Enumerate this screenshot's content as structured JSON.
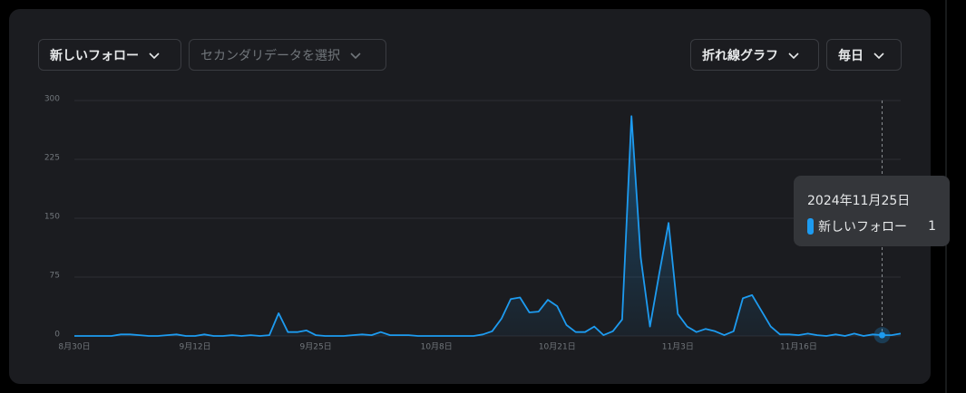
{
  "controls": {
    "primary": "新しいフォロー",
    "secondary": "セカンダリデータを選択",
    "chart_kind": "折れ線グラフ",
    "interval": "毎日"
  },
  "chart_data": {
    "type": "line",
    "categories": [
      "8月30日",
      null,
      null,
      null,
      null,
      null,
      null,
      null,
      null,
      null,
      null,
      null,
      null,
      "9月12日",
      null,
      null,
      null,
      null,
      null,
      null,
      null,
      null,
      null,
      null,
      null,
      null,
      "9月25日",
      null,
      null,
      null,
      null,
      null,
      null,
      null,
      null,
      null,
      null,
      null,
      null,
      "10月8日",
      null,
      null,
      null,
      null,
      null,
      null,
      null,
      null,
      null,
      null,
      null,
      null,
      "10月21日",
      null,
      null,
      null,
      null,
      null,
      null,
      null,
      null,
      null,
      null,
      null,
      null,
      "11月3日",
      null,
      null,
      null,
      null,
      null,
      null,
      null,
      null,
      null,
      null,
      null,
      null,
      "11月16日",
      null,
      null,
      null,
      null,
      null,
      null,
      null,
      null,
      null,
      null,
      null
    ],
    "series": [
      {
        "name": "新しいフォロー",
        "color": "#1d9bf0",
        "values": [
          0,
          0,
          0,
          0,
          0,
          2,
          2,
          1,
          0,
          0,
          1,
          2,
          0,
          0,
          2,
          0,
          0,
          1,
          0,
          1,
          0,
          1,
          29,
          5,
          5,
          7,
          1,
          0,
          0,
          0,
          1,
          2,
          1,
          5,
          1,
          1,
          1,
          0,
          0,
          0,
          0,
          0,
          0,
          0,
          2,
          6,
          22,
          47,
          49,
          30,
          31,
          46,
          38,
          14,
          5,
          5,
          12,
          1,
          6,
          21,
          280,
          100,
          12,
          80,
          144,
          28,
          12,
          5,
          9,
          6,
          1,
          6,
          48,
          52,
          32,
          12,
          2,
          2,
          1,
          3,
          1,
          0,
          2,
          0,
          3,
          0,
          2,
          1,
          1,
          3
        ]
      }
    ],
    "ylim": [
      0,
      300
    ],
    "yticks": [
      0,
      75,
      150,
      225,
      300
    ],
    "grid": true,
    "tooltip": {
      "title": "2024年11月25日"
    }
  }
}
